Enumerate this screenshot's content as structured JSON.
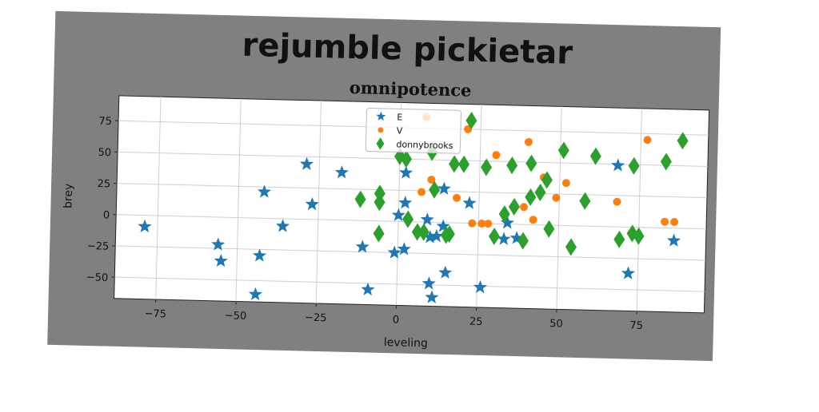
{
  "figure": {
    "suptitle": "rejumble pickietar",
    "background": "#808080",
    "plot_background": "#ffffff"
  },
  "chart_data": {
    "type": "scatter",
    "title": "omnipotence",
    "xlabel": "leveling",
    "ylabel": "brey",
    "xlim": [
      -88,
      96
    ],
    "ylim": [
      -67,
      95
    ],
    "xticks": [
      -75,
      -50,
      -25,
      0,
      25,
      50,
      75
    ],
    "yticks": [
      -50,
      -25,
      0,
      25,
      50,
      75
    ],
    "grid": true,
    "legend_position": "top-center",
    "series": [
      {
        "name": "E",
        "marker": "star",
        "color": "#1f77b4",
        "points": [
          [
            -79,
            -9
          ],
          [
            -56,
            -22
          ],
          [
            -55,
            -35
          ],
          [
            -44,
            -61
          ],
          [
            -43,
            -30
          ],
          [
            -42,
            21
          ],
          [
            -36,
            -6
          ],
          [
            -29,
            44
          ],
          [
            -27,
            12
          ],
          [
            -18,
            38
          ],
          [
            -11,
            -21
          ],
          [
            -9,
            -55
          ],
          [
            -1,
            -25
          ],
          [
            0,
            5
          ],
          [
            2,
            15
          ],
          [
            2,
            -22
          ],
          [
            2,
            39
          ],
          [
            9,
            2
          ],
          [
            10,
            -12
          ],
          [
            10,
            -49
          ],
          [
            11,
            -60
          ],
          [
            12,
            -11
          ],
          [
            14,
            -3
          ],
          [
            14,
            27
          ],
          [
            15,
            -40
          ],
          [
            22,
            16
          ],
          [
            26,
            -51
          ],
          [
            33,
            -12
          ],
          [
            34,
            1
          ],
          [
            37,
            -11
          ],
          [
            68,
            49
          ],
          [
            72,
            -37
          ],
          [
            86,
            -10
          ]
        ]
      },
      {
        "name": "V",
        "marker": "circle",
        "color": "#ff7f0e",
        "points": [
          [
            7,
            24
          ],
          [
            8,
            84
          ],
          [
            10,
            34
          ],
          [
            18,
            20
          ],
          [
            21,
            75
          ],
          [
            23,
            0
          ],
          [
            26,
            0
          ],
          [
            28,
            0
          ],
          [
            30,
            55
          ],
          [
            39,
            14
          ],
          [
            40,
            66
          ],
          [
            42,
            4
          ],
          [
            45,
            38
          ],
          [
            49,
            22
          ],
          [
            52,
            34
          ],
          [
            68,
            20
          ],
          [
            77,
            70
          ],
          [
            83,
            5
          ],
          [
            86,
            5
          ]
        ]
      },
      {
        "name": "donnybrooks",
        "marker": "diamond",
        "color": "#2ca02c",
        "points": [
          [
            -12,
            17
          ],
          [
            -6,
            22
          ],
          [
            -6,
            15
          ],
          [
            -6,
            -10
          ],
          [
            0,
            52
          ],
          [
            2,
            50
          ],
          [
            3,
            2
          ],
          [
            6,
            -8
          ],
          [
            8,
            -8
          ],
          [
            10,
            56
          ],
          [
            11,
            26
          ],
          [
            15,
            -10
          ],
          [
            16,
            -9
          ],
          [
            17,
            47
          ],
          [
            20,
            47
          ],
          [
            22,
            82
          ],
          [
            27,
            45
          ],
          [
            30,
            -10
          ],
          [
            33,
            8
          ],
          [
            35,
            47
          ],
          [
            36,
            14
          ],
          [
            39,
            -13
          ],
          [
            41,
            22
          ],
          [
            41,
            49
          ],
          [
            44,
            26
          ],
          [
            46,
            36
          ],
          [
            47,
            -3
          ],
          [
            51,
            60
          ],
          [
            54,
            -17
          ],
          [
            58,
            20
          ],
          [
            61,
            56
          ],
          [
            69,
            -10
          ],
          [
            73,
            49
          ],
          [
            73,
            -5
          ],
          [
            75,
            -7
          ],
          [
            83,
            53
          ],
          [
            88,
            70
          ]
        ]
      }
    ]
  }
}
